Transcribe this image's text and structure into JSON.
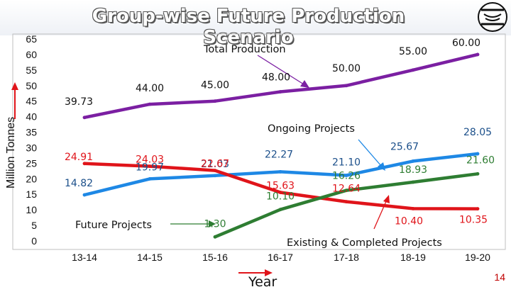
{
  "slide": {
    "title": "Group-wise Future Production Scenario",
    "page_number": "14"
  },
  "chart_data": {
    "type": "line",
    "ylabel": "Million Tonnes",
    "xlabel": "Year",
    "ylim": [
      0,
      65
    ],
    "yticks": [
      "0",
      "5",
      "10",
      "15",
      "20",
      "25",
      "30",
      "35",
      "40",
      "45",
      "50",
      "55",
      "60",
      "65"
    ],
    "categories": [
      "13-14",
      "14-15",
      "15-16",
      "16-17",
      "17-18",
      "18-19",
      "19-20"
    ],
    "series": [
      {
        "name": "Total Production",
        "color": "#7b1fa2",
        "values": [
          39.73,
          44.0,
          45.0,
          48.0,
          50.0,
          55.0,
          60.0
        ],
        "labels": [
          "39.73",
          "44.00",
          "45.00",
          "48.00",
          "50.00",
          "55.00",
          "60.00"
        ]
      },
      {
        "name": "Ongoing Projects",
        "color": "#1e88e5",
        "values": [
          14.82,
          19.97,
          21.03,
          22.27,
          21.1,
          25.67,
          28.05
        ],
        "labels": [
          "14.82",
          "19.97",
          "21.03",
          "22.27",
          "21.10",
          "25.67",
          "28.05"
        ]
      },
      {
        "name": "Existing & Completed Projects",
        "color": "#e0141a",
        "values": [
          24.91,
          24.03,
          22.67,
          15.63,
          12.64,
          10.4,
          10.35
        ],
        "labels": [
          "24.91",
          "24.03",
          "22.67",
          "15.63",
          "12.64",
          "10.40",
          "10.35"
        ]
      },
      {
        "name": "Future Projects",
        "color": "#2e7d32",
        "values": [
          null,
          null,
          1.3,
          10.1,
          16.26,
          18.93,
          21.6
        ],
        "labels": [
          "",
          "",
          "1.30",
          "10.10",
          "16.26",
          "18.93",
          "21.60"
        ]
      }
    ],
    "annotations": [
      "Total Production",
      "Ongoing Projects",
      "Future Projects",
      "Existing & Completed Projects"
    ]
  }
}
